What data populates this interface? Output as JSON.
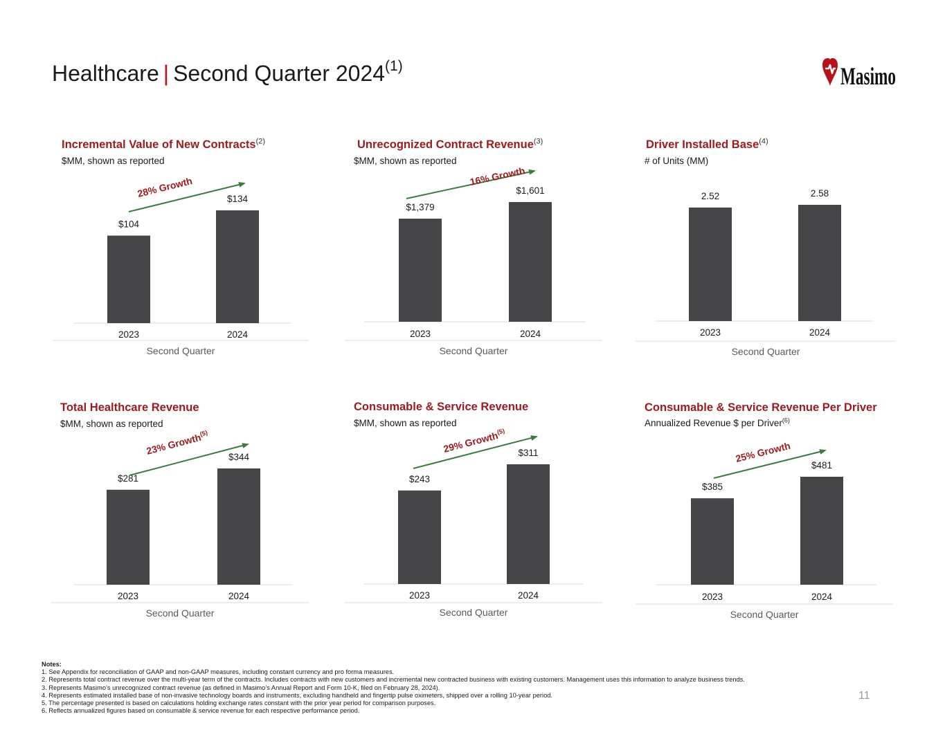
{
  "page": {
    "title_left": "Healthcare",
    "title_sep": "|",
    "title_right": "Second Quarter 2024",
    "title_note": "(1)",
    "logo_text": "Masimo",
    "page_number": "11",
    "brand_color": "#9b1c20",
    "bar_color": "#464648",
    "arrow_color": "#3e7a3e"
  },
  "chart_data": [
    {
      "type": "bar",
      "title": "Incremental Value of New Contracts",
      "title_note": "(2)",
      "subtitle": "$MM, shown as reported",
      "subtitle_note": "",
      "categories": [
        "2023",
        "2024"
      ],
      "values": [
        104,
        134
      ],
      "value_labels": [
        "$104",
        "$134"
      ],
      "xlabel": "Second Quarter",
      "growth_label": "28% Growth",
      "growth_note": "",
      "ylim": [
        0,
        134
      ]
    },
    {
      "type": "bar",
      "title": "Unrecognized Contract Revenue",
      "title_note": "(3)",
      "subtitle": "$MM, shown as reported",
      "subtitle_note": "",
      "categories": [
        "2023",
        "2024"
      ],
      "values": [
        1379,
        1601
      ],
      "value_labels": [
        "$1,379",
        "$1,601"
      ],
      "xlabel": "Second Quarter",
      "growth_label": "16% Growth",
      "growth_note": "",
      "ylim": [
        0,
        1601
      ]
    },
    {
      "type": "bar",
      "title": "Driver Installed Base",
      "title_note": "(4)",
      "subtitle": "# of Units (MM)",
      "subtitle_note": "",
      "categories": [
        "2023",
        "2024"
      ],
      "values": [
        2.52,
        2.58
      ],
      "value_labels": [
        "2.52",
        "2.58"
      ],
      "xlabel": "Second Quarter",
      "growth_label": "",
      "growth_note": "",
      "ylim": [
        0,
        2.58
      ]
    },
    {
      "type": "bar",
      "title": "Total Healthcare Revenue",
      "title_note": "",
      "subtitle": "$MM, shown as reported",
      "subtitle_note": "",
      "categories": [
        "2023",
        "2024"
      ],
      "values": [
        281,
        344
      ],
      "value_labels": [
        "$281",
        "$344"
      ],
      "xlabel": "Second Quarter",
      "growth_label": "23% Growth",
      "growth_note": "(5)",
      "ylim": [
        0,
        344
      ]
    },
    {
      "type": "bar",
      "title": "Consumable & Service Revenue",
      "title_note": "",
      "subtitle": "$MM, shown as reported",
      "subtitle_note": "",
      "categories": [
        "2023",
        "2024"
      ],
      "values": [
        243,
        311
      ],
      "value_labels": [
        "$243",
        "$311"
      ],
      "xlabel": "Second Quarter",
      "growth_label": "29% Growth",
      "growth_note": "(5)",
      "ylim": [
        0,
        311
      ]
    },
    {
      "type": "bar",
      "title": "Consumable & Service Revenue Per Driver",
      "title_note": "",
      "subtitle": "Annualized Revenue $ per Driver",
      "subtitle_note": "(6)",
      "categories": [
        "2023",
        "2024"
      ],
      "values": [
        385,
        481
      ],
      "value_labels": [
        "$385",
        "$481"
      ],
      "xlabel": "Second Quarter",
      "growth_label": "25% Growth",
      "growth_note": "",
      "ylim": [
        0,
        481
      ]
    }
  ],
  "notes": {
    "heading": "Notes:",
    "items": [
      "1.  See Appendix for reconciliation of GAAP and non-GAAP measures, including constant currency and pro forma measures.",
      "2.  Represents total contract revenue over the multi-year term of the contracts.  Includes contracts with new customers and incremental new contracted business with existing customers. Management uses this information to analyze business trends.",
      "3.  Represents Masimo’s unrecognized contract revenue (as defined in Masimo’s Annual Report and Form 10-K, filed on February 28, 2024).",
      "4.  Represents estimated installed base of non-invasive technology boards and instruments, excluding handheld and fingertip pulse oximeters, shipped over a rolling 10-year period.",
      "5.  The percentage presented is based on calculations holding exchange rates constant with the prior year period for comparison purposes.",
      "6.  Reflects annualized figures based on consumable & service revenue for each respective performance period."
    ]
  }
}
